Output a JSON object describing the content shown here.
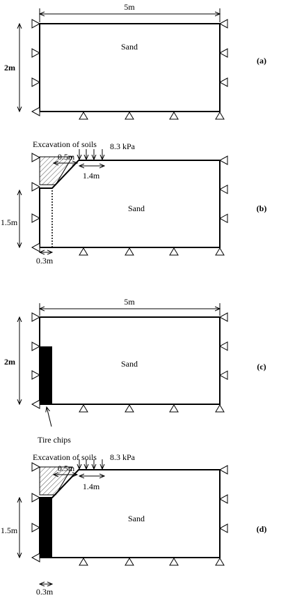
{
  "panels": [
    {
      "label": "(a)",
      "material": "Sand",
      "width": "5m",
      "height": "2m"
    },
    {
      "label": "(b)",
      "material": "Sand",
      "excavation": "Excavation of soils",
      "excavation_width": "0.5m",
      "load": "8.3 kPa",
      "load_width": "1.4m",
      "wall_height": "1.5m",
      "wall_width": "0.3m"
    },
    {
      "label": "(c)",
      "material": "Sand",
      "width": "5m",
      "height": "2m",
      "fill": "Tire chips"
    },
    {
      "label": "(d)",
      "material": "Sand",
      "excavation": "Excavation of soils",
      "excavation_width": "0.5m",
      "load": "8.3 kPa",
      "load_width": "1.4m",
      "wall_height": "1.5m",
      "wall_width": "0.3m"
    }
  ]
}
